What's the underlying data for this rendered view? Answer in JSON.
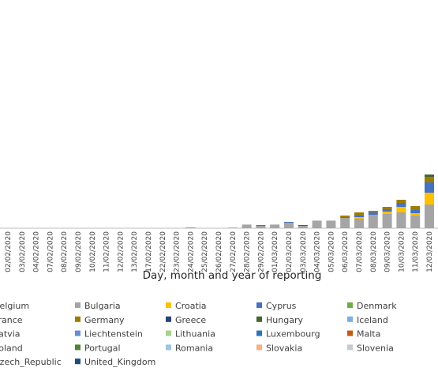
{
  "chart_data": {
    "type": "stacked_bar",
    "x_label": "Day, month and year of reporting",
    "categories": [
      "02/02/2020",
      "03/02/2020",
      "04/02/2020",
      "07/02/2020",
      "08/02/2020",
      "09/02/2020",
      "10/02/2020",
      "11/02/2020",
      "12/02/2020",
      "13/02/2020",
      "17/02/2020",
      "22/02/2020",
      "23/02/2020",
      "24/02/2020",
      "25/02/2020",
      "26/02/2020",
      "27/02/2020",
      "28/02/2020",
      "29/02/2020",
      "01/03/2020",
      "02/03/2020",
      "03/03/2020",
      "04/03/2020",
      "05/03/2020",
      "06/03/2020",
      "07/03/2020",
      "08/03/2020",
      "09/03/2020",
      "10/03/2020",
      "11/03/2020",
      "12/03/2020"
    ],
    "ylim": [
      0,
      2890
    ],
    "series": [
      {
        "name": "Belgium",
        "color": "#5b9bd5",
        "values": [
          0,
          0,
          0,
          0,
          0,
          0,
          0,
          0,
          0,
          0,
          0,
          0,
          0,
          0,
          0,
          0,
          0,
          0,
          0,
          0,
          0,
          0,
          0,
          0,
          0,
          0,
          0,
          0,
          0,
          0,
          0
        ]
      },
      {
        "name": "Bulgaria",
        "color": "#a5a5a5",
        "values": [
          0,
          0,
          0,
          0,
          0,
          0,
          0,
          0,
          0,
          0,
          0,
          0,
          0,
          0,
          0,
          0,
          0,
          40,
          30,
          40,
          70,
          30,
          90,
          90,
          130,
          120,
          170,
          180,
          200,
          160,
          300
        ]
      },
      {
        "name": "Croatia",
        "color": "#ffc000",
        "values": [
          0,
          0,
          0,
          0,
          0,
          0,
          0,
          0,
          0,
          0,
          0,
          0,
          0,
          0,
          5,
          0,
          0,
          0,
          0,
          0,
          0,
          0,
          0,
          0,
          0,
          20,
          0,
          30,
          70,
          30,
          150
        ]
      },
      {
        "name": "Cyprus",
        "color": "#4472c4",
        "values": [
          0,
          0,
          0,
          0,
          0,
          0,
          0,
          0,
          0,
          0,
          0,
          0,
          0,
          0,
          0,
          0,
          5,
          0,
          10,
          0,
          10,
          0,
          0,
          0,
          10,
          20,
          30,
          30,
          50,
          40,
          130
        ]
      },
      {
        "name": "Denmark",
        "color": "#70ad47",
        "values": [
          0,
          0,
          0,
          0,
          0,
          0,
          0,
          0,
          0,
          0,
          0,
          0,
          0,
          0,
          0,
          0,
          0,
          0,
          0,
          0,
          0,
          0,
          0,
          0,
          0,
          0,
          0,
          0,
          0,
          0,
          0
        ]
      },
      {
        "name": "France",
        "color": "#255e91",
        "values": [
          0,
          0,
          0,
          0,
          0,
          0,
          0,
          0,
          0,
          0,
          0,
          0,
          0,
          0,
          0,
          0,
          0,
          0,
          0,
          0,
          0,
          0,
          0,
          0,
          0,
          0,
          0,
          0,
          0,
          0,
          0
        ]
      },
      {
        "name": "Germany",
        "color": "#9e7c00",
        "values": [
          0,
          0,
          0,
          0,
          0,
          0,
          0,
          0,
          0,
          0,
          0,
          0,
          0,
          0,
          0,
          0,
          0,
          0,
          0,
          0,
          0,
          0,
          0,
          0,
          20,
          40,
          20,
          30,
          40,
          50,
          70
        ]
      },
      {
        "name": "Greece",
        "color": "#264478",
        "values": [
          0,
          0,
          0,
          0,
          0,
          0,
          0,
          0,
          0,
          0,
          0,
          0,
          0,
          5,
          0,
          0,
          0,
          0,
          0,
          0,
          0,
          0,
          0,
          0,
          0,
          0,
          0,
          0,
          0,
          0,
          0
        ]
      },
      {
        "name": "Hungary",
        "color": "#43682b",
        "values": [
          0,
          0,
          0,
          0,
          0,
          0,
          0,
          0,
          0,
          0,
          0,
          0,
          0,
          0,
          0,
          0,
          0,
          0,
          0,
          0,
          0,
          10,
          0,
          0,
          0,
          0,
          0,
          0,
          0,
          0,
          30
        ]
      },
      {
        "name": "Iceland",
        "color": "#7cafdd",
        "values": [
          0,
          0,
          0,
          0,
          0,
          0,
          0,
          0,
          0,
          0,
          0,
          0,
          0,
          0,
          0,
          0,
          0,
          0,
          0,
          0,
          0,
          0,
          0,
          0,
          0,
          0,
          0,
          0,
          0,
          0,
          0
        ]
      },
      {
        "name": "Latvia",
        "color": "#636363",
        "values": [
          0,
          0,
          0,
          0,
          0,
          0,
          0,
          0,
          0,
          0,
          0,
          0,
          0,
          0,
          0,
          0,
          0,
          0,
          0,
          0,
          0,
          0,
          0,
          0,
          0,
          0,
          0,
          0,
          0,
          0,
          0
        ]
      },
      {
        "name": "Liechtenstein",
        "color": "#698ed0",
        "values": [
          0,
          0,
          0,
          0,
          0,
          0,
          0,
          0,
          0,
          0,
          0,
          0,
          0,
          0,
          0,
          0,
          0,
          0,
          0,
          0,
          0,
          0,
          0,
          0,
          0,
          0,
          0,
          0,
          0,
          0,
          0
        ]
      },
      {
        "name": "Lithuania",
        "color": "#a9d18e",
        "values": [
          0,
          0,
          0,
          0,
          0,
          0,
          0,
          0,
          0,
          0,
          0,
          0,
          0,
          0,
          0,
          0,
          0,
          0,
          0,
          0,
          0,
          0,
          0,
          0,
          0,
          0,
          0,
          0,
          0,
          0,
          0
        ]
      },
      {
        "name": "Luxembourg",
        "color": "#2e75b6",
        "values": [
          0,
          0,
          0,
          0,
          0,
          0,
          0,
          0,
          0,
          0,
          0,
          0,
          0,
          0,
          0,
          0,
          0,
          0,
          0,
          0,
          0,
          0,
          0,
          0,
          0,
          0,
          0,
          0,
          0,
          0,
          0
        ]
      },
      {
        "name": "Malta",
        "color": "#c55a11",
        "values": [
          0,
          0,
          0,
          0,
          0,
          0,
          0,
          0,
          0,
          0,
          0,
          0,
          0,
          0,
          0,
          0,
          0,
          0,
          0,
          0,
          0,
          0,
          0,
          0,
          0,
          0,
          0,
          0,
          0,
          0,
          0
        ]
      },
      {
        "name": "Poland",
        "color": "#997300",
        "values": [
          0,
          0,
          0,
          0,
          0,
          0,
          0,
          0,
          0,
          0,
          0,
          0,
          0,
          0,
          0,
          0,
          0,
          0,
          0,
          0,
          0,
          0,
          0,
          0,
          0,
          0,
          0,
          0,
          0,
          0,
          0
        ]
      },
      {
        "name": "Portugal",
        "color": "#548235",
        "values": [
          0,
          0,
          0,
          0,
          0,
          0,
          0,
          0,
          0,
          0,
          0,
          0,
          0,
          0,
          0,
          0,
          0,
          0,
          0,
          0,
          0,
          0,
          0,
          0,
          0,
          0,
          0,
          0,
          0,
          0,
          0
        ]
      },
      {
        "name": "Romania",
        "color": "#9dc3e6",
        "values": [
          0,
          0,
          0,
          0,
          0,
          0,
          0,
          0,
          0,
          0,
          0,
          0,
          0,
          0,
          0,
          0,
          0,
          0,
          0,
          0,
          0,
          0,
          0,
          0,
          0,
          0,
          0,
          0,
          0,
          0,
          0
        ]
      },
      {
        "name": "Slovakia",
        "color": "#f4b183",
        "values": [
          0,
          0,
          0,
          0,
          0,
          0,
          0,
          0,
          0,
          0,
          0,
          0,
          0,
          0,
          0,
          0,
          0,
          0,
          0,
          0,
          0,
          0,
          0,
          0,
          0,
          0,
          0,
          0,
          0,
          0,
          0
        ]
      },
      {
        "name": "Slovenia",
        "color": "#c9c9c9",
        "values": [
          0,
          0,
          0,
          0,
          0,
          0,
          0,
          0,
          0,
          0,
          0,
          0,
          0,
          0,
          0,
          0,
          0,
          10,
          0,
          10,
          0,
          0,
          10,
          10,
          0,
          0,
          0,
          0,
          0,
          0,
          0
        ]
      },
      {
        "name": "Czech_Republic",
        "color": "#264478",
        "values": [
          0,
          0,
          0,
          0,
          0,
          0,
          0,
          0,
          0,
          0,
          0,
          0,
          0,
          0,
          0,
          0,
          0,
          0,
          0,
          0,
          0,
          0,
          0,
          0,
          0,
          0,
          0,
          0,
          0,
          0,
          0
        ]
      },
      {
        "name": "United_Kingdom",
        "color": "#1f4e79",
        "values": [
          0,
          0,
          0,
          0,
          0,
          0,
          0,
          0,
          0,
          0,
          0,
          0,
          0,
          0,
          0,
          0,
          0,
          0,
          0,
          0,
          0,
          0,
          0,
          0,
          0,
          0,
          0,
          0,
          0,
          0,
          0
        ]
      }
    ]
  }
}
